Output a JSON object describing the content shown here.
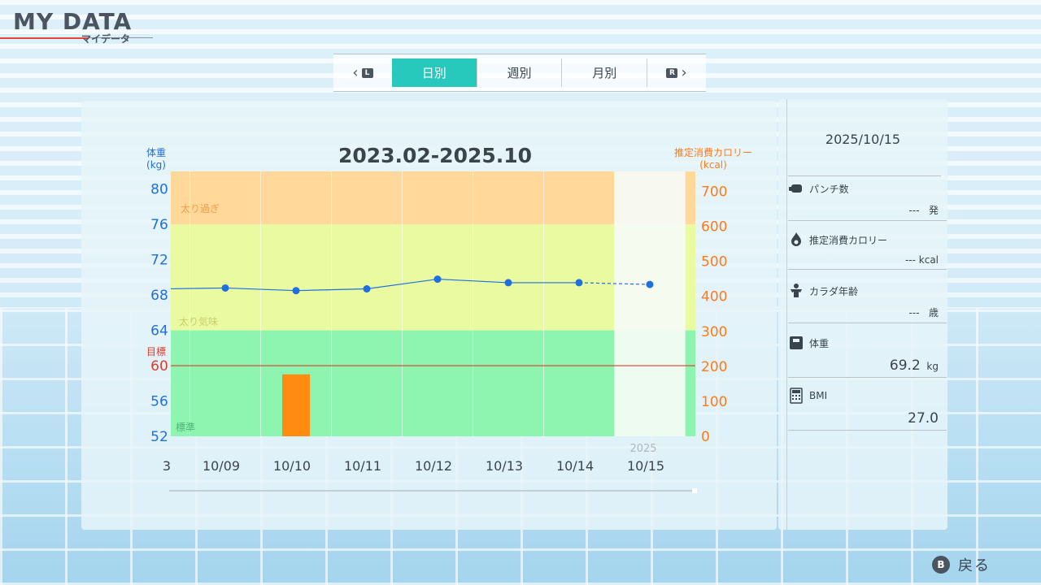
{
  "header": {
    "title": "MY DATA",
    "subtitle": "マイデータ"
  },
  "tabs": {
    "left_button": "L",
    "right_button": "R",
    "items": [
      {
        "label": "日別",
        "active": true
      },
      {
        "label": "週別",
        "active": false
      },
      {
        "label": "月別",
        "active": false
      }
    ]
  },
  "chart": {
    "period_title": "2023.02-2025.10",
    "left_axis_label_1": "体重",
    "left_axis_label_2": "(kg)",
    "right_axis_label_1": "推定消費カロリー",
    "right_axis_label_2": "(kcal)",
    "target_label": "目標",
    "zone_over": "太り過ぎ",
    "zone_slight": "太り気味",
    "zone_normal": "標準",
    "year_label": "2025",
    "partial_left_label": "3",
    "colors": {
      "weight_line": "#1f6fe0",
      "target_line": "#e03a2a",
      "calorie_bar": "#ff8c10",
      "zone_over": "#ffd89a",
      "zone_slight": "#eafaa0",
      "zone_normal": "#8ef5b0",
      "selected_column": "#f6fbf6"
    }
  },
  "chart_data": {
    "type": "line",
    "categories": [
      "10/09",
      "10/10",
      "10/11",
      "10/12",
      "10/13",
      "10/14",
      "10/15"
    ],
    "series": [
      {
        "name": "体重",
        "axis": "left",
        "values": [
          68.8,
          68.5,
          68.7,
          69.8,
          69.4,
          69.4,
          69.2
        ],
        "dashed_last_segment": true
      },
      {
        "name": "推定消費カロリー",
        "axis": "right",
        "type": "bar",
        "values": [
          null,
          177,
          null,
          null,
          null,
          null,
          null
        ]
      }
    ],
    "left_ticks": [
      52,
      56,
      60,
      64,
      68,
      72,
      76,
      80
    ],
    "right_ticks": [
      0,
      100,
      200,
      300,
      400,
      500,
      600,
      700
    ],
    "ylim_left": [
      52,
      82
    ],
    "ylim_right": [
      0,
      757
    ],
    "target_weight": 60,
    "zones": [
      {
        "name": "太り過ぎ",
        "from": 76,
        "to": 82
      },
      {
        "name": "太り気味",
        "from": 64,
        "to": 76
      },
      {
        "name": "標準",
        "from": 52,
        "to": 64
      }
    ],
    "selected": "10/15"
  },
  "details": {
    "date": "2025/10/15",
    "punch": {
      "label": "パンチ数",
      "value": "---",
      "unit": "発"
    },
    "calories": {
      "label": "推定消費カロリー",
      "value": "---",
      "unit": "kcal"
    },
    "body_age": {
      "label": "カラダ年齢",
      "value": "---",
      "unit": "歳"
    },
    "weight": {
      "label": "体重",
      "value": "69.2",
      "unit": "kg"
    },
    "bmi": {
      "label": "BMI",
      "value": "27.0"
    }
  },
  "footer": {
    "button": "B",
    "back_label": "戻る"
  }
}
